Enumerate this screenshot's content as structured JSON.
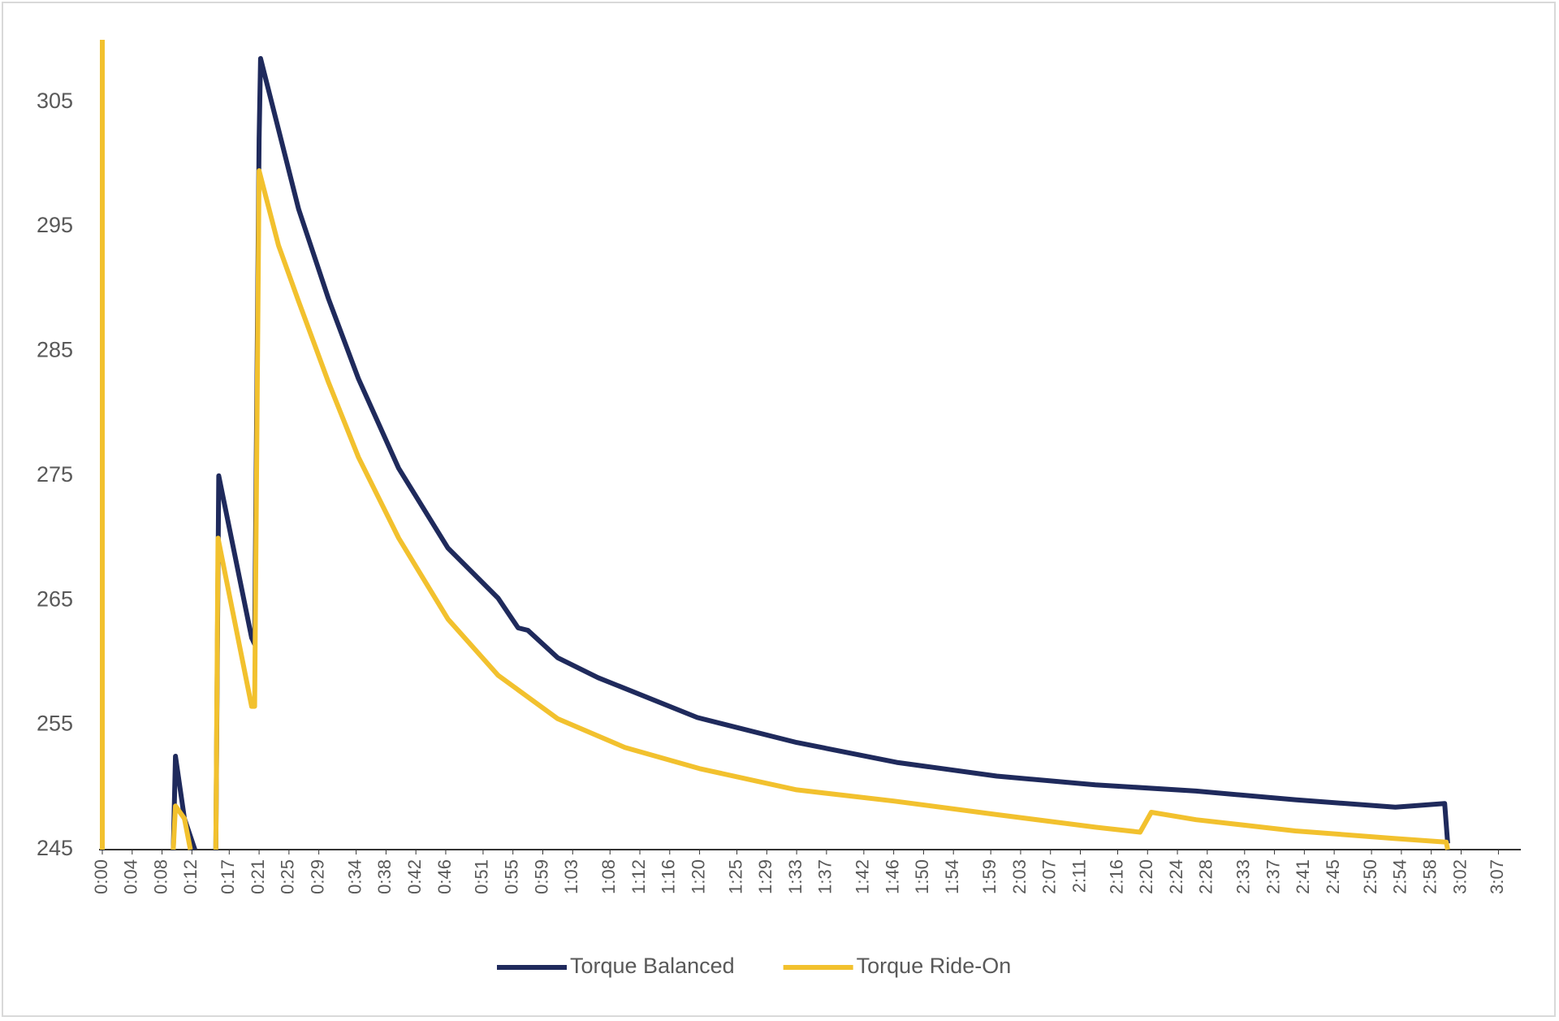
{
  "chart_data": {
    "type": "line",
    "series": [
      {
        "name": "Torque Balanced",
        "color": "#1f2a5c",
        "x": [
          9.5,
          9.8,
          11,
          12.4,
          null,
          15.2,
          15.6,
          20.0,
          20.4,
          21.0,
          21.2,
          23.6,
          26.3,
          30.3,
          34.3,
          39.7,
          46.3,
          53,
          55.7,
          57,
          61,
          66.4,
          79.7,
          93,
          106.4,
          119.8,
          133,
          146.5,
          159.8,
          173.2,
          179.8,
          180.2
        ],
        "values": [
          245,
          252.5,
          247.5,
          245,
          null,
          245,
          275,
          262,
          261.5,
          302,
          308.5,
          302.8,
          296.4,
          289.2,
          282.8,
          275.6,
          269.2,
          265.2,
          262.8,
          262.6,
          260.4,
          258.8,
          255.6,
          253.6,
          252.0,
          250.9,
          250.2,
          249.7,
          249.0,
          248.4,
          248.7,
          245.5
        ]
      },
      {
        "name": "Torque Ride-On",
        "color": "#f2c12e",
        "x": [
          0,
          0,
          null,
          9.5,
          9.8,
          11,
          11.8,
          null,
          15.2,
          15.5,
          20.0,
          20.4,
          21.0,
          23.6,
          26.3,
          30.3,
          34.3,
          39.7,
          46.3,
          53,
          61,
          70,
          80,
          93,
          106,
          120,
          133,
          139,
          140.5,
          146.5,
          159.8,
          173,
          180,
          180.2
        ],
        "values": [
          245,
          310,
          null,
          245,
          248.5,
          247.5,
          245,
          null,
          245,
          270,
          256.5,
          256.5,
          299.5,
          293.5,
          289,
          282.5,
          276.5,
          270,
          263.5,
          259,
          255.5,
          253.2,
          251.5,
          249.8,
          248.9,
          247.8,
          246.8,
          246.4,
          248,
          247.4,
          246.5,
          245.9,
          245.6,
          245
        ]
      }
    ],
    "xlim": [
      0,
      190
    ],
    "xticks": [
      {
        "value": 0,
        "label": "0:00"
      },
      {
        "value": 4,
        "label": "0:04"
      },
      {
        "value": 8,
        "label": "0:08"
      },
      {
        "value": 12,
        "label": "0:12"
      },
      {
        "value": 17,
        "label": "0:17"
      },
      {
        "value": 21,
        "label": "0:21"
      },
      {
        "value": 25,
        "label": "0:25"
      },
      {
        "value": 29,
        "label": "0:29"
      },
      {
        "value": 34,
        "label": "0:34"
      },
      {
        "value": 38,
        "label": "0:38"
      },
      {
        "value": 42,
        "label": "0:42"
      },
      {
        "value": 46,
        "label": "0:46"
      },
      {
        "value": 51,
        "label": "0:51"
      },
      {
        "value": 55,
        "label": "0:55"
      },
      {
        "value": 59,
        "label": "0:59"
      },
      {
        "value": 63,
        "label": "1:03"
      },
      {
        "value": 68,
        "label": "1:08"
      },
      {
        "value": 72,
        "label": "1:12"
      },
      {
        "value": 76,
        "label": "1:16"
      },
      {
        "value": 80,
        "label": "1:20"
      },
      {
        "value": 85,
        "label": "1:25"
      },
      {
        "value": 89,
        "label": "1:29"
      },
      {
        "value": 93,
        "label": "1:33"
      },
      {
        "value": 97,
        "label": "1:37"
      },
      {
        "value": 102,
        "label": "1:42"
      },
      {
        "value": 106,
        "label": "1:46"
      },
      {
        "value": 110,
        "label": "1:50"
      },
      {
        "value": 114,
        "label": "1:54"
      },
      {
        "value": 119,
        "label": "1:59"
      },
      {
        "value": 123,
        "label": "2:03"
      },
      {
        "value": 127,
        "label": "2:07"
      },
      {
        "value": 131,
        "label": "2:11"
      },
      {
        "value": 136,
        "label": "2:16"
      },
      {
        "value": 140,
        "label": "2:20"
      },
      {
        "value": 144,
        "label": "2:24"
      },
      {
        "value": 148,
        "label": "2:28"
      },
      {
        "value": 153,
        "label": "2:33"
      },
      {
        "value": 157,
        "label": "2:37"
      },
      {
        "value": 161,
        "label": "2:41"
      },
      {
        "value": 165,
        "label": "2:45"
      },
      {
        "value": 170,
        "label": "2:50"
      },
      {
        "value": 174,
        "label": "2:54"
      },
      {
        "value": 178,
        "label": "2:58"
      },
      {
        "value": 182,
        "label": "3:02"
      },
      {
        "value": 187,
        "label": "3:07"
      }
    ],
    "ylim": [
      245,
      310
    ],
    "yticks": [
      245,
      255,
      265,
      275,
      285,
      295,
      305
    ],
    "grid": false,
    "legend": "bottom"
  }
}
